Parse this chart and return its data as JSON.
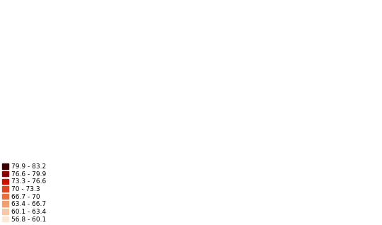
{
  "legend_labels": [
    "79.9 - 83.2",
    "76.6 - 79.9",
    "73.3 - 76.6",
    "70 - 73.3",
    "66.7 - 70",
    "63.4 - 66.7",
    "60.1 - 63.4",
    "56.8 - 60.1"
  ],
  "legend_colors": [
    "#3d0000",
    "#8b0000",
    "#cc1100",
    "#dd4422",
    "#e87040",
    "#f0a070",
    "#f5c8a8",
    "#fce8d5"
  ],
  "background_color": "#ffffff",
  "figsize": [
    5.4,
    3.18
  ],
  "dpi": 100,
  "legend_fontsize": 6.5,
  "colormap_bounds": [
    56.8,
    60.1,
    63.4,
    66.7,
    70.0,
    73.3,
    76.6,
    79.9,
    83.2
  ]
}
